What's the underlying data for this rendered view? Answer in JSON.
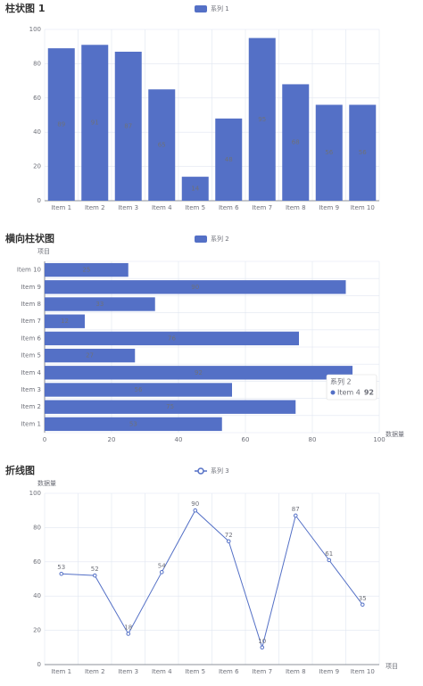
{
  "chart_data": [
    {
      "type": "bar",
      "title": "柱状图 1",
      "categories": [
        "Item 1",
        "Item 2",
        "Item 3",
        "Item 4",
        "Item 5",
        "Item 6",
        "Item 7",
        "Item 8",
        "Item 9",
        "Item 10"
      ],
      "series": [
        {
          "name": "系列 1",
          "color": "#5470c6",
          "values": [
            89,
            91,
            87,
            65,
            14,
            48,
            95,
            68,
            56,
            56
          ]
        }
      ],
      "ylim": [
        0,
        100
      ],
      "yticks": [
        0,
        20,
        40,
        60,
        80,
        100
      ],
      "grid": true,
      "legend": "top"
    },
    {
      "type": "bar",
      "orientation": "horizontal",
      "title": "横向柱状图",
      "y_label": "项目",
      "x_label": "数据量",
      "categories": [
        "Item 1",
        "Item 2",
        "Item 3",
        "Item 4",
        "Item 5",
        "Item 6",
        "Item 7",
        "Item 8",
        "Item 9",
        "Item 10"
      ],
      "series": [
        {
          "name": "系列 2",
          "color": "#5470c6",
          "values": [
            53,
            75,
            56,
            92,
            27,
            76,
            12,
            33,
            90,
            25
          ]
        }
      ],
      "xlim": [
        0,
        100
      ],
      "xticks": [
        0,
        20,
        40,
        60,
        80,
        100
      ],
      "grid": true,
      "legend": "top"
    },
    {
      "type": "line",
      "title": "折线图",
      "y_label": "数据量",
      "x_label": "项目",
      "categories": [
        "Item 1",
        "Item 2",
        "Item 3",
        "Item 4",
        "Item 5",
        "Item 6",
        "Item 7",
        "Item 8",
        "Item 9",
        "Item 10"
      ],
      "series": [
        {
          "name": "系列 3",
          "color": "#5470c6",
          "values": [
            53,
            52,
            18,
            54,
            90,
            72,
            10,
            87,
            61,
            35
          ]
        }
      ],
      "ylim": [
        0,
        100
      ],
      "yticks": [
        0,
        20,
        40,
        60,
        80,
        100
      ],
      "grid": true,
      "legend": "top"
    }
  ]
}
